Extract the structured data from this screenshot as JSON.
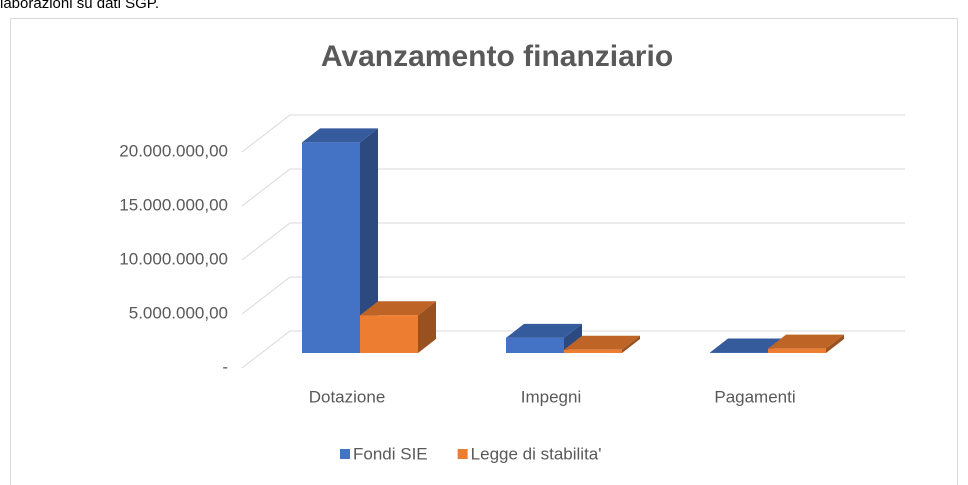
{
  "caption": "laborazioni su dati SGP.",
  "chart_data": {
    "type": "bar3d",
    "title": "Avanzamento finanziario",
    "categories": [
      "Dotazione",
      "Impegni",
      "Pagamenti"
    ],
    "series": [
      {
        "name": "Fondi SIE",
        "color": "#4472c4",
        "values": [
          19500000,
          1400000,
          50000
        ]
      },
      {
        "name": "Legge di stabilita'",
        "color": "#ed7d31",
        "values": [
          3500000,
          300000,
          400000
        ]
      }
    ],
    "ylim": [
      0,
      20000000
    ],
    "yticks": [
      {
        "value": 0,
        "label": "-"
      },
      {
        "value": 5000000,
        "label": "5.000.000,00"
      },
      {
        "value": 10000000,
        "label": "10.000.000,00"
      },
      {
        "value": 15000000,
        "label": "15.000.000,00"
      },
      {
        "value": 20000000,
        "label": "20.000.000,00"
      }
    ],
    "grid": true,
    "legend": "bottom"
  }
}
